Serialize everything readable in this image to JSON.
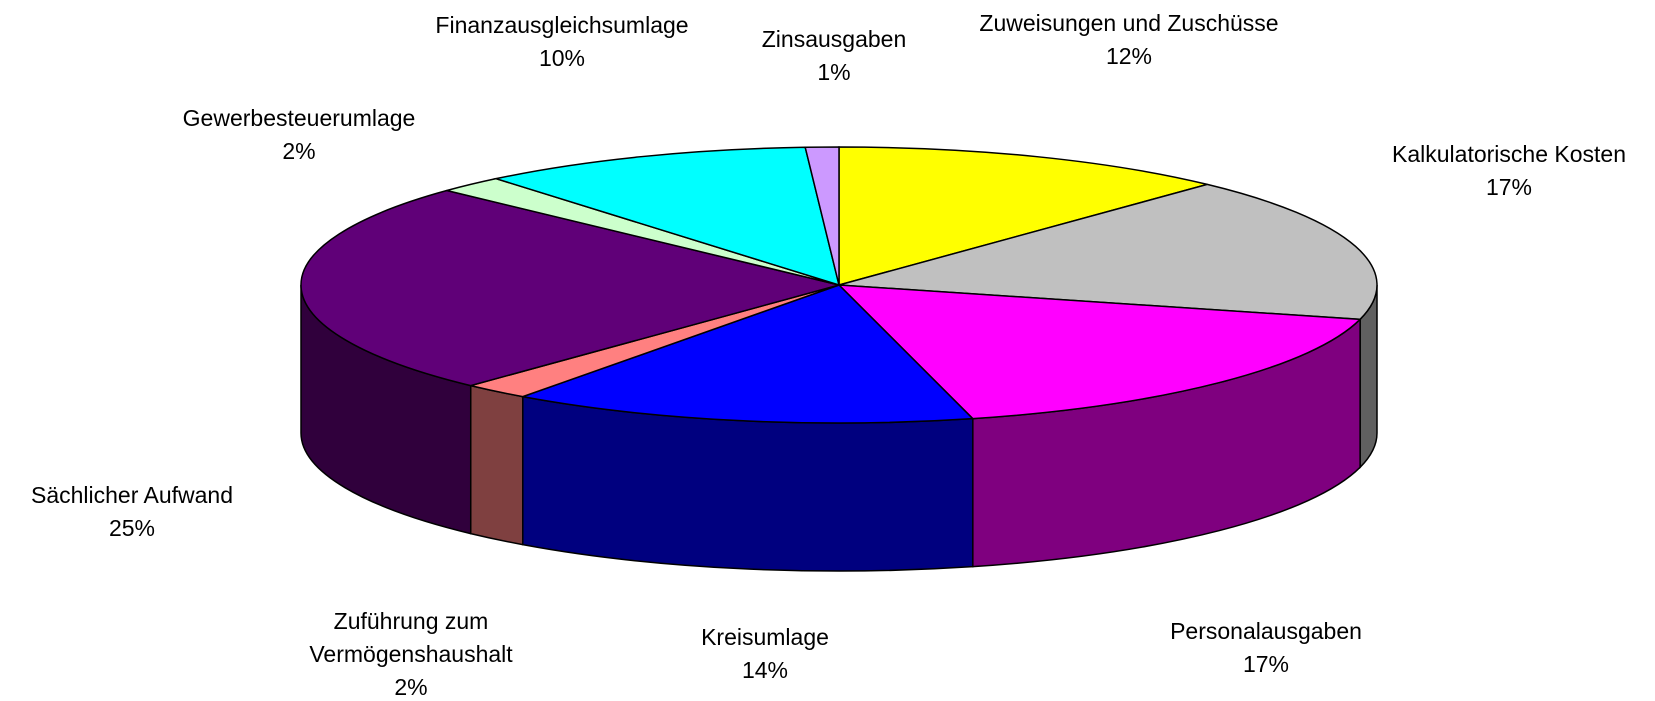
{
  "chart_data": {
    "type": "pie3d",
    "categories": [
      "Zuweisungen und Zuschüsse",
      "Kalkulatorische Kosten",
      "Personalausgaben",
      "Kreisumlage",
      "Zuführung zum Vermögenshaushalt",
      "Sächlicher Aufwand",
      "Gewerbesteuerumlage",
      "Finanzausgleichsumlage",
      "Zinsausgaben"
    ],
    "values": [
      12,
      17,
      17,
      14,
      2,
      25,
      2,
      10,
      1
    ],
    "value_labels": [
      "12%",
      "17%",
      "17%",
      "14%",
      "2%",
      "25%",
      "2%",
      "10%",
      "1%"
    ],
    "colors": [
      "#ffff00",
      "#c0c0c0",
      "#ff00ff",
      "#0000ff",
      "#ff8080",
      "#600078",
      "#ccffcc",
      "#00ffff",
      "#cc99ff"
    ]
  }
}
